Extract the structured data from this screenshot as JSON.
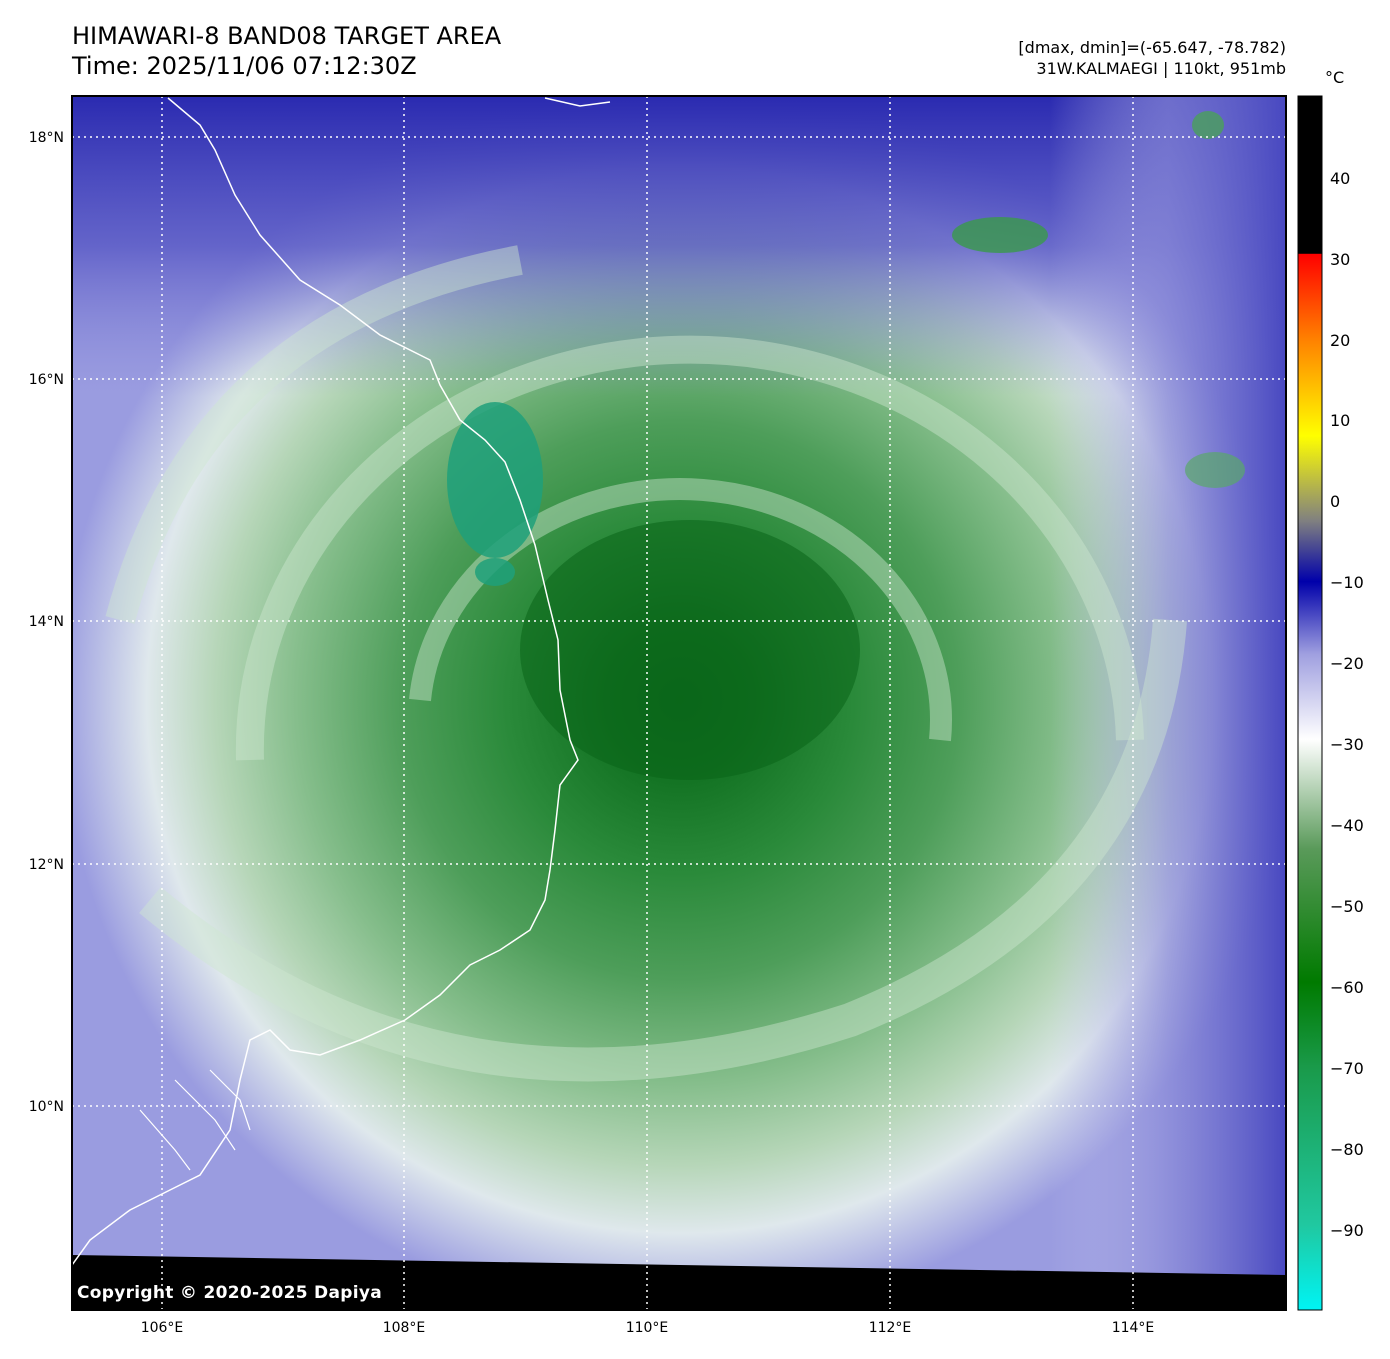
{
  "title": {
    "line1": "HIMAWARI-8 BAND08 TARGET AREA",
    "line2": "Time: 2025/11/06 07:12:30Z"
  },
  "info": {
    "range": "[dmax, dmin]=(-65.647, -78.782)",
    "storm": "31W.KALMAEGI | 110kt, 951mb"
  },
  "copyright": "Copyright © 2020-2025 Dapiya",
  "colorbar": {
    "unit": "°C",
    "ticks": [
      "40",
      "30",
      "20",
      "10",
      "0",
      "−10",
      "−20",
      "−30",
      "−40",
      "−50",
      "−60",
      "−70",
      "−80",
      "−90"
    ]
  },
  "axes": {
    "lat_labels": [
      "18°N",
      "16°N",
      "14°N",
      "12°N",
      "10°N"
    ],
    "lon_labels": [
      "106°E",
      "108°E",
      "110°E",
      "112°E",
      "114°E"
    ]
  },
  "colors": {
    "cloud_top_green": "#1d7a2a",
    "cold_cyan": "#00e8e8",
    "cool_blue": "#1a1aa0",
    "warm_black": "#000000",
    "coastline": "#ffffff"
  }
}
